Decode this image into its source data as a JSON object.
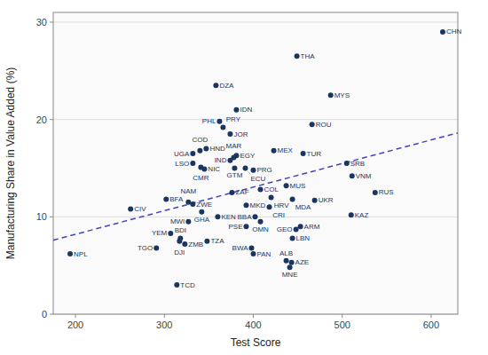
{
  "chart_data": {
    "type": "scatter",
    "xlabel": "Test Score",
    "ylabel": "Manufacturing Share in Value Added (%)",
    "xlim": [
      175,
      630
    ],
    "ylim": [
      0,
      31
    ],
    "xticks": [
      200,
      300,
      400,
      500,
      600
    ],
    "yticks": [
      0,
      10,
      20,
      30
    ],
    "grid": "y",
    "series": [
      {
        "type": "scatter",
        "color": "#1a3560",
        "marker": "circle",
        "labels": [
          "CHN",
          "THA",
          "MYS",
          "DZA",
          "IDN",
          "ROU",
          "PHL",
          "PRY",
          "JOR",
          "HND",
          "COD",
          "UGA",
          "MEX",
          "TUR",
          "EGY",
          "MAR",
          "IND",
          "LSO",
          "CMR",
          "NIC",
          "GTM",
          "ECU",
          "PRG",
          "SRB",
          "VNM",
          "ZAF",
          "MUS",
          "COL",
          "HRV",
          "MDA",
          "UKR",
          "RUS",
          "BFA",
          "NAM",
          "ZWE",
          "MKD",
          "CRI",
          "CIV",
          "GHA",
          "KAZ",
          "MWI",
          "KEN",
          "BBA",
          "OMN",
          "PSE",
          "ARM",
          "GEO",
          "LBN",
          "YEM",
          "BDI",
          "DJI",
          "ZMB",
          "TZA",
          "BWA",
          "PAN",
          "TGO",
          "ALB",
          "AZE",
          "MNE",
          "NPL",
          "TCD"
        ],
        "x": [
          613,
          449,
          487,
          358,
          381,
          466,
          362,
          366,
          374,
          347,
          340,
          332,
          423,
          456,
          381,
          378,
          374,
          332,
          341,
          345,
          379,
          391,
          400,
          505,
          511,
          376,
          437,
          408,
          420,
          444,
          469,
          537,
          302,
          327,
          332,
          392,
          418,
          262,
          342,
          510,
          327,
          360,
          402,
          408,
          392,
          453,
          448,
          444,
          307,
          318,
          317,
          323,
          348,
          398,
          400,
          291,
          437,
          443,
          441,
          194,
          314
        ],
        "values": [
          29.0,
          26.5,
          22.5,
          23.5,
          21.0,
          19.5,
          19.8,
          19.2,
          18.5,
          17.0,
          16.8,
          16.5,
          16.8,
          16.5,
          16.3,
          16.1,
          15.8,
          15.5,
          15.1,
          14.9,
          15.0,
          15.0,
          14.8,
          15.5,
          14.2,
          12.5,
          13.2,
          12.8,
          12.0,
          11.8,
          11.7,
          12.5,
          11.8,
          11.5,
          11.3,
          11.2,
          11.0,
          10.8,
          10.5,
          10.2,
          9.5,
          10.0,
          10.0,
          9.5,
          9.0,
          9.0,
          8.7,
          7.8,
          8.3,
          7.8,
          7.5,
          7.2,
          7.5,
          6.8,
          6.2,
          6.8,
          5.5,
          5.3,
          4.8,
          6.2,
          3.0
        ]
      },
      {
        "type": "line",
        "color": "#4444bb",
        "line_style": "dashed",
        "x": [
          175,
          630
        ],
        "values": [
          7.5995,
          18.6288
        ]
      }
    ]
  }
}
